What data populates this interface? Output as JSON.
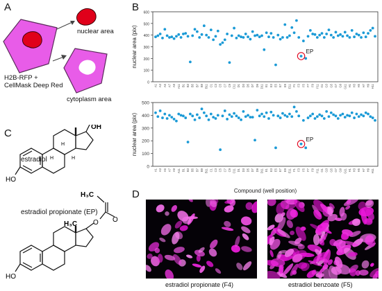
{
  "panels": {
    "a": {
      "letter": "A",
      "arrow_label_top": "nuclear area",
      "cell_label_line1": "H2B-RFP +",
      "cell_label_line2": "CellMask Deep Red",
      "arrow_label_bottom": "cytoplasm area"
    },
    "b": {
      "letter": "B",
      "callout_top": "EP",
      "callout_bottom": "EP"
    },
    "c": {
      "letter": "C",
      "compound1": "estradiol",
      "compound2": "estradiol propionate (EP)",
      "oh_top": "OH",
      "ho_top": "HO",
      "ho_bottom": "HO",
      "o_ester": "O",
      "o_carbonyl": "O",
      "h3c_ethyl": "H₃C",
      "h3c_methyl": "H₃C",
      "h_labels": [
        "H",
        "H",
        "H"
      ]
    },
    "d": {
      "letter": "D",
      "caption_left": "estradiol propionate (F4)",
      "caption_right": "estradiol benzoate (F5)"
    }
  },
  "colors": {
    "cell": "#e85ce8",
    "nucleus": "#e0001a",
    "marker": "#1b9ad6",
    "highlight": "#e0001a"
  },
  "chart_data": [
    {
      "type": "scatter",
      "ylabel": "nuclear area (pix)",
      "xlabel": "",
      "ylim": [
        0,
        600
      ],
      "yticks": [
        0,
        100,
        200,
        300,
        400,
        500,
        600
      ],
      "xtick_labels": [
        "A1",
        "A3",
        "A5",
        "A7",
        "A9",
        "A11",
        "B1",
        "B3",
        "B5",
        "B7",
        "B9",
        "B11",
        "C1",
        "C3",
        "C5",
        "C7",
        "C9",
        "C11",
        "D1",
        "D3",
        "D5",
        "D7",
        "D9",
        "D11",
        "E1",
        "E3",
        "E5",
        "E7",
        "E9",
        "E11",
        "F1",
        "F3",
        "F5",
        "F7",
        "F9",
        "F11",
        "G1",
        "G3",
        "G5",
        "G7",
        "G9",
        "G11",
        "H1",
        "H3",
        "H5",
        "H7",
        "H9",
        "H11"
      ],
      "n_points": 96,
      "highlight": {
        "label": "EP",
        "index": 63,
        "value": 220
      },
      "values": [
        385,
        395,
        410,
        375,
        450,
        395,
        380,
        385,
        370,
        390,
        405,
        380,
        410,
        415,
        390,
        170,
        395,
        450,
        430,
        380,
        405,
        480,
        400,
        380,
        445,
        360,
        390,
        435,
        320,
        335,
        360,
        410,
        165,
        395,
        460,
        375,
        395,
        385,
        380,
        410,
        385,
        365,
        430,
        395,
        400,
        385,
        395,
        275,
        420,
        385,
        415,
        380,
        145,
        400,
        365,
        380,
        490,
        380,
        395,
        465,
        420,
        525,
        380,
        220,
        350,
        200,
        390,
        440,
        410,
        405,
        380,
        400,
        415,
        380,
        410,
        445,
        400,
        380,
        425,
        395,
        405,
        390,
        425,
        395,
        380,
        440,
        385,
        410,
        400,
        380,
        420,
        385,
        415,
        440,
        460,
        390
      ]
    },
    {
      "type": "scatter",
      "ylabel": "nuclear area (pix)",
      "xlabel": "Compound (well position)",
      "ylim": [
        0,
        500
      ],
      "yticks": [
        0,
        100,
        200,
        300,
        400,
        500
      ],
      "xtick_labels": [
        "A1",
        "A3",
        "A5",
        "A7",
        "A9",
        "A11",
        "B1",
        "B3",
        "B5",
        "B7",
        "B9",
        "B11",
        "C1",
        "C3",
        "C5",
        "C7",
        "C9",
        "C11",
        "D1",
        "D3",
        "D5",
        "D7",
        "D9",
        "D11",
        "E1",
        "E3",
        "E5",
        "E7",
        "E9",
        "E11",
        "F1",
        "F3",
        "F5",
        "F7",
        "F9",
        "F11",
        "G1",
        "G3",
        "G5",
        "G7",
        "G9",
        "G11",
        "H1",
        "H3",
        "H5",
        "H7",
        "H9",
        "H11"
      ],
      "n_points": 96,
      "highlight": {
        "label": "EP",
        "index": 63,
        "value": 175
      },
      "values": [
        420,
        390,
        435,
        380,
        410,
        375,
        400,
        385,
        370,
        355,
        410,
        400,
        395,
        380,
        190,
        410,
        395,
        365,
        405,
        380,
        450,
        420,
        395,
        365,
        410,
        385,
        375,
        400,
        130,
        395,
        435,
        370,
        405,
        390,
        415,
        395,
        380,
        365,
        430,
        390,
        400,
        385,
        385,
        205,
        440,
        395,
        410,
        390,
        420,
        375,
        425,
        400,
        145,
        395,
        380,
        415,
        400,
        390,
        410,
        390,
        465,
        430,
        395,
        175,
        360,
        145,
        380,
        395,
        410,
        375,
        390,
        405,
        395,
        375,
        430,
        390,
        420,
        405,
        395,
        375,
        400,
        410,
        385,
        400,
        395,
        420,
        380,
        410,
        390,
        405,
        395,
        420,
        410,
        390,
        380,
        360
      ]
    }
  ]
}
